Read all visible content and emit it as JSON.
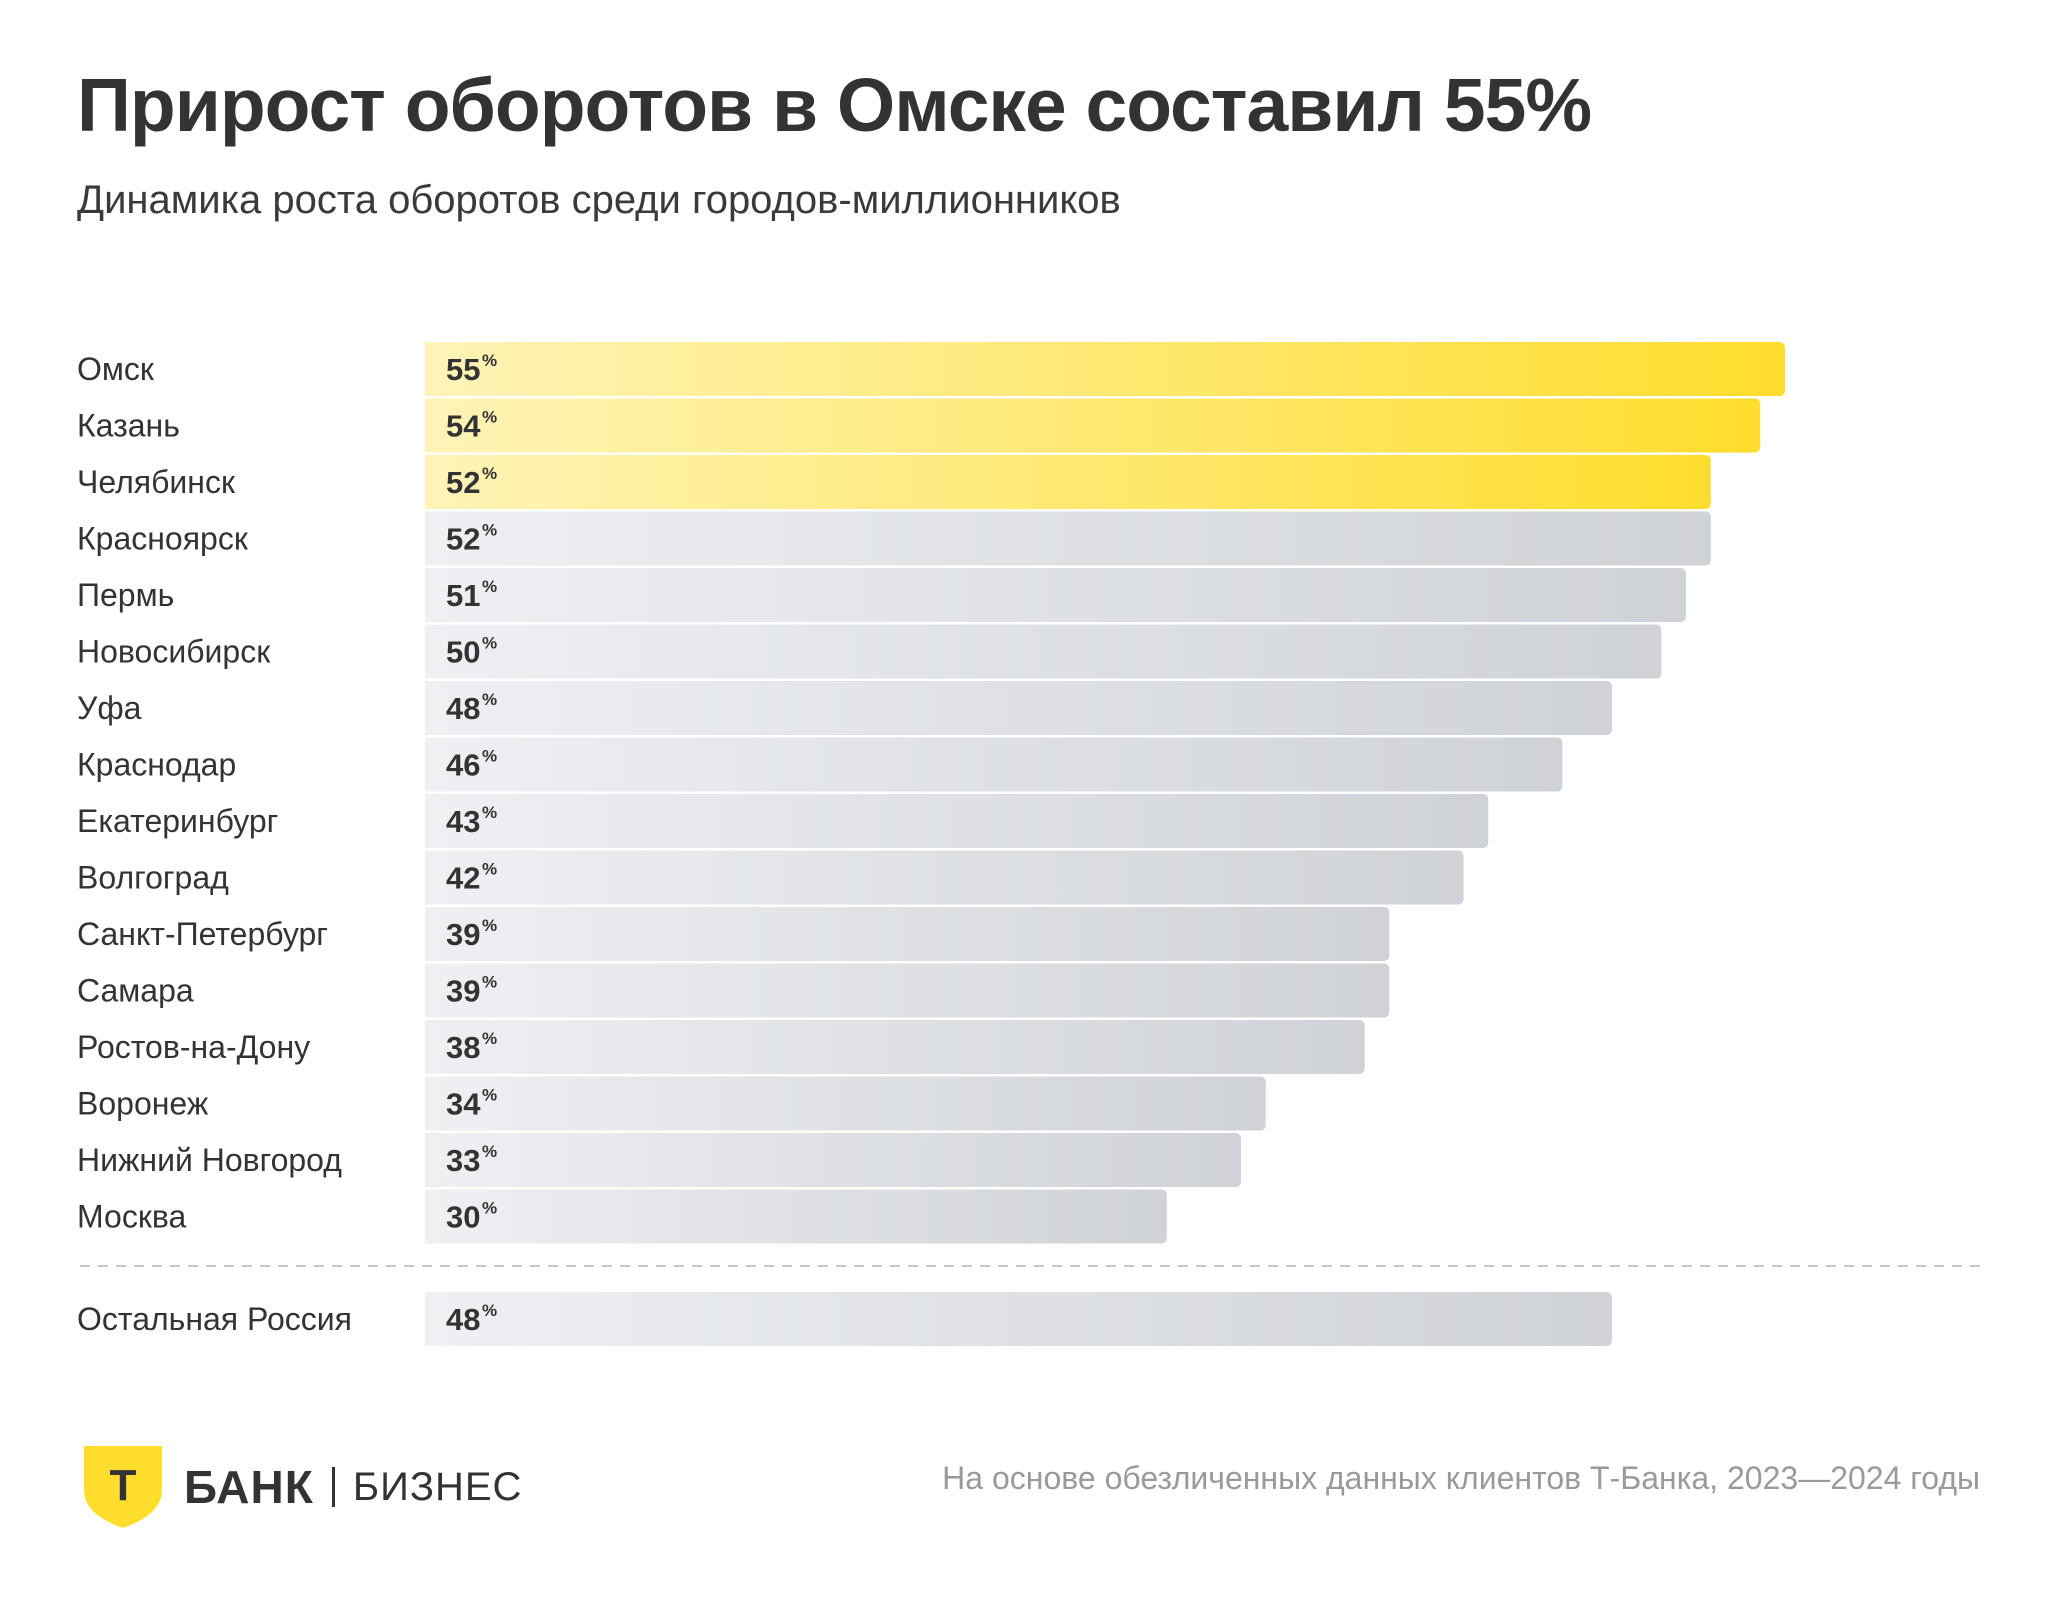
{
  "header": {
    "title": "Прирост оборотов в Омске составил 55%",
    "subtitle": "Динамика роста оборотов среди городов-миллионников"
  },
  "colors": {
    "highlight_start": "#FFF4B8",
    "highlight_end": "#FFDD2D",
    "regular_start": "#EEF0F3",
    "regular_end": "#CFD2D6",
    "text": "#333333",
    "note": "#9A9A9A"
  },
  "chart_data": {
    "type": "bar",
    "orientation": "horizontal",
    "unit_suffix": "%",
    "categories": [
      "Омск",
      "Казань",
      "Челябинск",
      "Красноярск",
      "Пермь",
      "Новосибирск",
      "Уфа",
      "Краснодар",
      "Екатеринбург",
      "Волгоград",
      "Санкт-Петербург",
      "Самара",
      "Ростов-на-Дону",
      "Воронеж",
      "Нижний Новгород",
      "Москва"
    ],
    "values": [
      55,
      54,
      52,
      52,
      51,
      50,
      48,
      46,
      43,
      42,
      39,
      39,
      38,
      34,
      33,
      30
    ],
    "highlighted": [
      true,
      true,
      true,
      false,
      false,
      false,
      false,
      false,
      false,
      false,
      false,
      false,
      false,
      false,
      false,
      false
    ],
    "reference": {
      "label": "Остальная Россия",
      "value": 48
    },
    "xlim": [
      0,
      55
    ],
    "grid": false,
    "legend": false
  },
  "footer": {
    "logo_letter": "Т",
    "logo_bank": "БАНК",
    "logo_business": "БИЗНЕС",
    "source_note": "На основе обезличенных данных клиентов Т-Банка, 2023—2024 годы"
  }
}
